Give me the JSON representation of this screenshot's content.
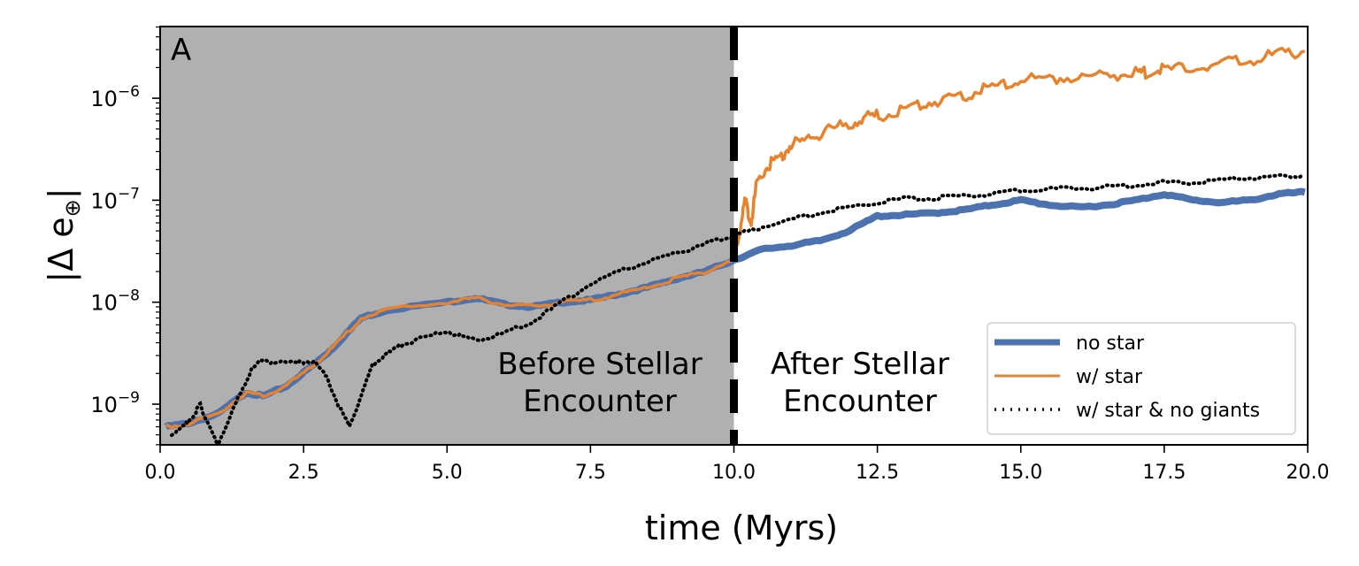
{
  "chart_data": {
    "type": "line",
    "panel_label": "A",
    "title": "",
    "xlabel": "time (Myrs)",
    "ylabel": "|Δ e⊕|",
    "ylabel_parts": {
      "bar_left": "|",
      "delta": "Δ",
      "e": "e",
      "subscript": "⊕",
      "bar_right": "|"
    },
    "xlim": [
      0,
      20
    ],
    "ylim": [
      4e-10,
      5e-06
    ],
    "yscale": "log",
    "x_ticks": [
      0,
      2.5,
      5,
      7.5,
      10,
      12.5,
      15,
      17.5,
      20
    ],
    "x_tick_labels": [
      "0.0",
      "2.5",
      "5.0",
      "7.5",
      "10.0",
      "12.5",
      "15.0",
      "17.5",
      "20.0"
    ],
    "y_ticks": [
      -9,
      -8,
      -7,
      -6
    ],
    "y_tick_labels": [
      {
        "base": "10",
        "exp": "−9"
      },
      {
        "base": "10",
        "exp": "−8"
      },
      {
        "base": "10",
        "exp": "−7"
      },
      {
        "base": "10",
        "exp": "−6"
      }
    ],
    "grid": false,
    "shaded_region": {
      "x0": 0,
      "x1": 10,
      "color": "#b0b0b0"
    },
    "vline": {
      "x": 10,
      "style": "dashed",
      "color": "#000000"
    },
    "annotations": [
      {
        "lines": [
          "Before Stellar",
          "Encounter"
        ],
        "x": 7.0,
        "y": 2.2e-09
      },
      {
        "lines": [
          "After Stellar",
          "Encounter"
        ],
        "x": 12.2,
        "y": 2.2e-09
      }
    ],
    "legend": {
      "position": "lower right",
      "entries": [
        {
          "label": "no star",
          "color": "#4c72b0",
          "style": "solid-thick"
        },
        {
          "label": "w/ star",
          "color": "#e8822b",
          "style": "solid"
        },
        {
          "label": "w/ star & no giants",
          "color": "#000000",
          "style": "dotted"
        }
      ]
    },
    "series": [
      {
        "name": "no star",
        "color": "#4c72b0",
        "width": 8,
        "x": [
          0.1,
          0.5,
          1.0,
          1.5,
          1.8,
          2.2,
          2.7,
          3.0,
          3.5,
          4.0,
          5.0,
          5.5,
          6.0,
          6.5,
          7.0,
          7.5,
          8.0,
          8.5,
          9.0,
          9.5,
          10.0,
          10.5,
          11.0,
          11.5,
          12.0,
          12.5,
          13.0,
          13.5,
          14.0,
          14.5,
          15.0,
          15.5,
          16.0,
          16.5,
          17.0,
          17.5,
          18.0,
          18.5,
          19.0,
          19.5,
          19.95
        ],
        "values": [
          6e-10,
          6.5e-10,
          8e-10,
          1.3e-09,
          1.2e-09,
          1.5e-09,
          2.5e-09,
          3.5e-09,
          7e-09,
          8.5e-09,
          1e-08,
          1.1e-08,
          9.5e-09,
          9e-09,
          1e-08,
          1.05e-08,
          1.2e-08,
          1.4e-08,
          1.7e-08,
          2e-08,
          2.6e-08,
          3.3e-08,
          3.6e-08,
          4e-08,
          5e-08,
          7e-08,
          7.2e-08,
          7.5e-08,
          8e-08,
          9e-08,
          1e-07,
          9e-08,
          8.5e-08,
          9e-08,
          1e-07,
          1.15e-07,
          1e-07,
          9.5e-08,
          1e-07,
          1.15e-07,
          1.2e-07
        ]
      },
      {
        "name": "w/ star",
        "color": "#e8822b",
        "width": 3.5,
        "x": [
          0.1,
          0.5,
          1.0,
          1.5,
          1.8,
          2.2,
          2.7,
          3.0,
          3.5,
          4.0,
          5.0,
          5.5,
          6.0,
          6.5,
          7.0,
          7.5,
          8.0,
          8.5,
          9.0,
          9.5,
          10.0,
          10.1,
          10.2,
          10.3,
          10.4,
          10.6,
          10.8,
          11.0,
          11.3,
          11.6,
          12.0,
          12.3,
          12.6,
          13.0,
          13.4,
          13.8,
          14.2,
          14.6,
          15.0,
          15.5,
          16.0,
          16.5,
          17.0,
          17.2,
          17.5,
          18.0,
          18.5,
          19.0,
          19.5,
          19.95
        ],
        "values": [
          6e-10,
          6.5e-10,
          8e-10,
          1.3e-09,
          1.2e-09,
          1.5e-09,
          2.5e-09,
          3.5e-09,
          7e-09,
          8.5e-09,
          1e-08,
          1.1e-08,
          9.5e-09,
          9e-09,
          1e-08,
          1.05e-08,
          1.2e-08,
          1.4e-08,
          1.7e-08,
          2e-08,
          2.6e-08,
          5e-08,
          1e-07,
          6e-08,
          1.5e-07,
          2.2e-07,
          2.6e-07,
          3.5e-07,
          4e-07,
          4.8e-07,
          5.5e-07,
          6.5e-07,
          6.8e-07,
          8e-07,
          9e-07,
          1e-06,
          1.15e-06,
          1.3e-06,
          1.5e-06,
          1.6e-06,
          1.6e-06,
          1.7e-06,
          1.75e-06,
          1.8e-06,
          1.9e-06,
          2e-06,
          2.2e-06,
          2.4e-06,
          2.7e-06,
          2.9e-06
        ]
      },
      {
        "name": "w/ star & no giants",
        "color": "#000000",
        "width": 4,
        "x": [
          0.2,
          0.4,
          0.6,
          0.7,
          0.8,
          1.0,
          1.2,
          1.4,
          1.6,
          1.8,
          2.0,
          2.3,
          2.5,
          2.7,
          2.9,
          3.1,
          3.3,
          3.5,
          3.7,
          3.9,
          4.2,
          4.5,
          5.0,
          5.3,
          5.6,
          6.0,
          6.5,
          7.0,
          7.5,
          8.0,
          8.5,
          9.0,
          9.5,
          9.8,
          10.0,
          10.5,
          11.0,
          11.5,
          12.0,
          12.5,
          13.0,
          13.5,
          14.0,
          14.5,
          15.0,
          15.5,
          16.0,
          16.5,
          17.0,
          17.5,
          18.0,
          18.5,
          19.0,
          19.5,
          19.95
        ],
        "values": [
          5e-10,
          6e-10,
          8e-10,
          1e-09,
          7e-10,
          4e-10,
          7e-10,
          1.3e-09,
          2.2e-09,
          2.8e-09,
          2.5e-09,
          2.7e-09,
          2.5e-09,
          2.7e-09,
          1.8e-09,
          1e-09,
          6e-10,
          1.2e-09,
          2.4e-09,
          3e-09,
          3.8e-09,
          4.3e-09,
          5.2e-09,
          4.5e-09,
          4.3e-09,
          5e-09,
          6.5e-09,
          1e-08,
          1.5e-08,
          2e-08,
          2.5e-08,
          3e-08,
          3.8e-08,
          4.2e-08,
          4.5e-08,
          5.5e-08,
          6.5e-08,
          7.5e-08,
          8.5e-08,
          9.5e-08,
          1.05e-07,
          1.05e-07,
          1.1e-07,
          1.15e-07,
          1.25e-07,
          1.3e-07,
          1.3e-07,
          1.35e-07,
          1.4e-07,
          1.5e-07,
          1.5e-07,
          1.6e-07,
          1.65e-07,
          1.7e-07,
          1.75e-07
        ]
      }
    ]
  }
}
